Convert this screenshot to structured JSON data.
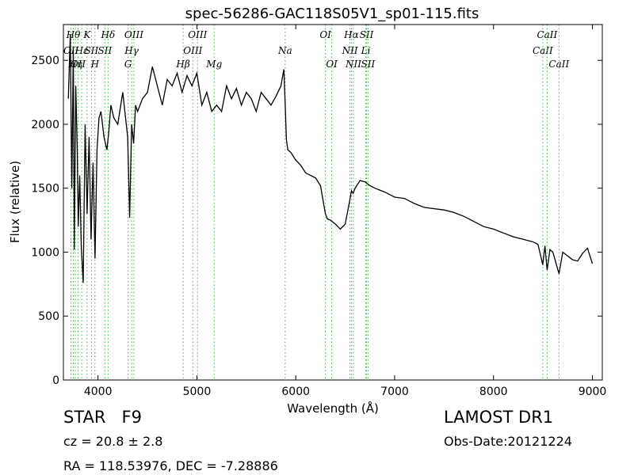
{
  "chart_data": {
    "type": "line",
    "title": "spec-56286-GAC118S05V1_sp01-115.fits",
    "xlabel": "Wavelength (Å)",
    "ylabel": "Flux (relative)",
    "xlim": [
      3650,
      9100
    ],
    "ylim": [
      0,
      2780
    ],
    "xticks": [
      4000,
      5000,
      6000,
      7000,
      8000,
      9000
    ],
    "yticks": [
      0,
      500,
      1000,
      1500,
      2000,
      2500
    ],
    "grid": false,
    "line_color": "#000000",
    "marker_color": "#4daf4a",
    "spectrum": {
      "x": [
        3700,
        3720,
        3735,
        3750,
        3760,
        3775,
        3790,
        3800,
        3815,
        3830,
        3850,
        3870,
        3890,
        3910,
        3930,
        3950,
        3970,
        3990,
        4010,
        4030,
        4060,
        4090,
        4110,
        4130,
        4160,
        4200,
        4250,
        4300,
        4320,
        4340,
        4360,
        4380,
        4400,
        4450,
        4500,
        4550,
        4600,
        4650,
        4700,
        4750,
        4800,
        4850,
        4900,
        4950,
        5000,
        5050,
        5100,
        5150,
        5200,
        5250,
        5300,
        5350,
        5400,
        5450,
        5500,
        5550,
        5600,
        5650,
        5700,
        5750,
        5800,
        5850,
        5880,
        5893,
        5905,
        5920,
        5950,
        6000,
        6050,
        6100,
        6150,
        6200,
        6250,
        6300,
        6320,
        6350,
        6400,
        6450,
        6500,
        6520,
        6540,
        6563,
        6580,
        6600,
        6650,
        6700,
        6750,
        6800,
        6900,
        7000,
        7100,
        7200,
        7300,
        7400,
        7500,
        7600,
        7700,
        7800,
        7900,
        8000,
        8100,
        8200,
        8300,
        8400,
        8450,
        8498,
        8520,
        8542,
        8570,
        8600,
        8662,
        8700,
        8750,
        8800,
        8850,
        8900,
        8950,
        9000
      ],
      "y": [
        2200,
        2700,
        1500,
        2600,
        1020,
        2300,
        1800,
        1200,
        1600,
        1050,
        760,
        2000,
        1300,
        1900,
        1100,
        1700,
        950,
        1800,
        2050,
        2100,
        1900,
        1800,
        1950,
        2150,
        2050,
        2000,
        2250,
        1900,
        1270,
        2000,
        1850,
        2150,
        2100,
        2200,
        2250,
        2450,
        2300,
        2150,
        2350,
        2300,
        2400,
        2250,
        2380,
        2300,
        2400,
        2150,
        2250,
        2100,
        2150,
        2100,
        2300,
        2200,
        2280,
        2150,
        2250,
        2200,
        2100,
        2250,
        2200,
        2150,
        2220,
        2300,
        2430,
        2150,
        1880,
        1800,
        1780,
        1720,
        1680,
        1620,
        1600,
        1580,
        1520,
        1300,
        1260,
        1250,
        1220,
        1180,
        1220,
        1300,
        1380,
        1480,
        1460,
        1500,
        1560,
        1550,
        1520,
        1500,
        1470,
        1430,
        1420,
        1380,
        1350,
        1340,
        1330,
        1310,
        1280,
        1240,
        1200,
        1180,
        1150,
        1120,
        1100,
        1080,
        1060,
        900,
        1050,
        860,
        1020,
        1000,
        830,
        1000,
        970,
        940,
        930,
        990,
        1030,
        910
      ]
    },
    "lines": [
      {
        "w": 3727,
        "label": "OII",
        "row": 1
      },
      {
        "w": 3750,
        "label": "Hθ",
        "row": 0
      },
      {
        "w": 3771,
        "label": "Hη",
        "row": 2
      },
      {
        "w": 3798,
        "label": "OII",
        "row": 2
      },
      {
        "w": 3835,
        "label": "Hε",
        "row": 1
      },
      {
        "w": 3889,
        "label": "K",
        "row": 0
      },
      {
        "w": 3934,
        "label": "SII",
        "row": 1
      },
      {
        "w": 3969,
        "label": "H",
        "row": 2
      },
      {
        "w": 4070,
        "label": "SII",
        "row": 1
      },
      {
        "w": 4102,
        "label": "Hδ",
        "row": 0
      },
      {
        "w": 4304,
        "label": "G",
        "row": 2
      },
      {
        "w": 4340,
        "label": "Hγ",
        "row": 1
      },
      {
        "w": 4363,
        "label": "OIII",
        "row": 0
      },
      {
        "w": 4861,
        "label": "Hβ",
        "row": 2
      },
      {
        "w": 4959,
        "label": "OIII",
        "row": 1
      },
      {
        "w": 5007,
        "label": "OIII",
        "row": 0
      },
      {
        "w": 5175,
        "label": "Mg",
        "row": 2
      },
      {
        "w": 5893,
        "label": "Na",
        "row": 1
      },
      {
        "w": 6300,
        "label": "OI",
        "row": 0
      },
      {
        "w": 6364,
        "label": "OI",
        "row": 2
      },
      {
        "w": 6548,
        "label": "NII",
        "row": 1
      },
      {
        "w": 6563,
        "label": "Hα",
        "row": 0
      },
      {
        "w": 6583,
        "label": "NII",
        "row": 2
      },
      {
        "w": 6708,
        "label": "Li",
        "row": 1
      },
      {
        "w": 6716,
        "label": "SII",
        "row": 0
      },
      {
        "w": 6731,
        "label": "SII",
        "row": 2
      },
      {
        "w": 8498,
        "label": "CaII",
        "row": 1
      },
      {
        "w": 8542,
        "label": "CaII",
        "row": 0
      },
      {
        "w": 8662,
        "label": "CaII",
        "row": 2
      }
    ]
  },
  "info": {
    "class_type": "STAR",
    "subclass": "F9",
    "redshift": "cz = 20.8 ± 2.8",
    "coords": "RA = 118.53976, DEC = -7.28886",
    "survey": "LAMOST DR1",
    "obs_date": "Obs-Date:20121224"
  }
}
